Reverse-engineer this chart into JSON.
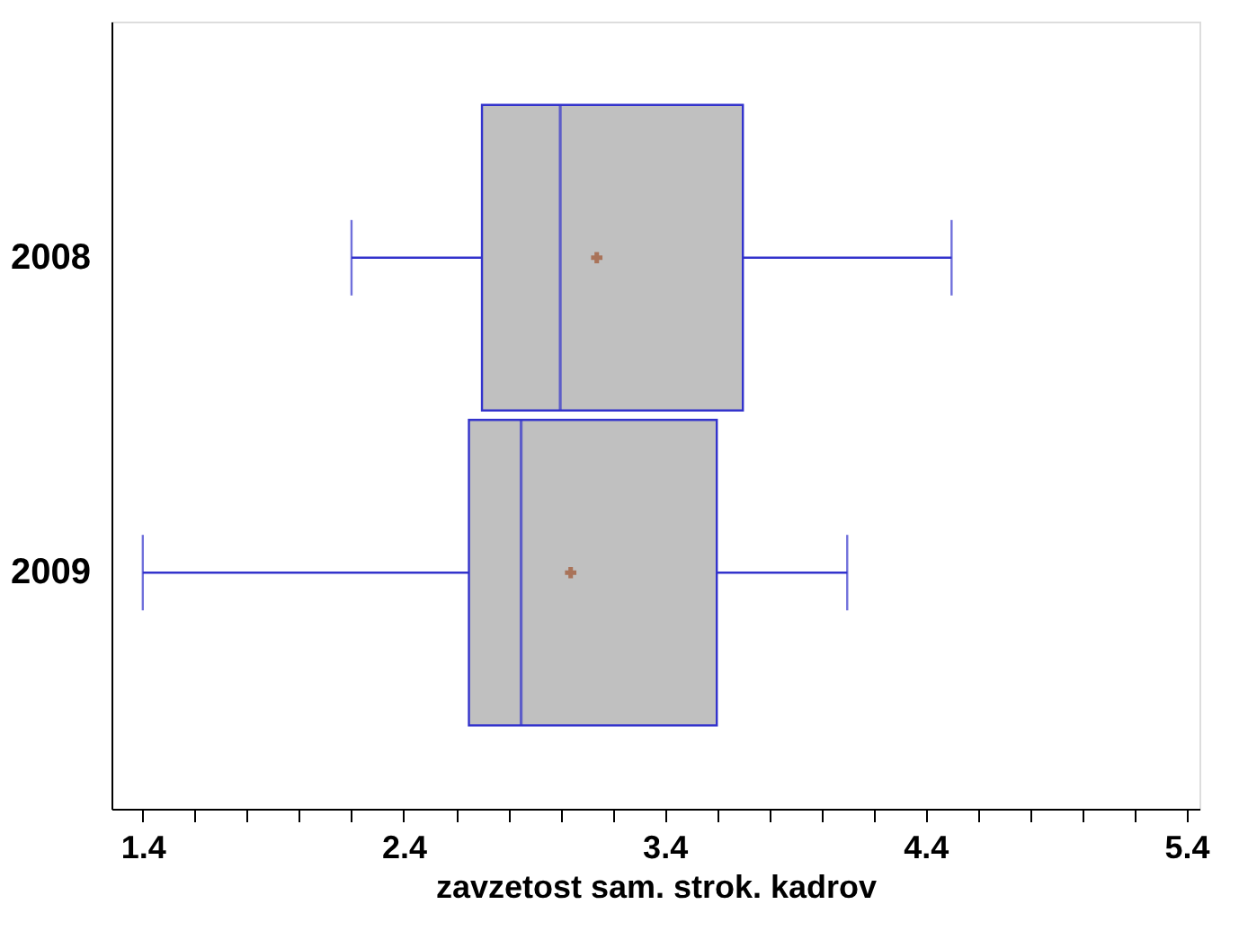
{
  "chart_data": {
    "type": "box",
    "xlabel": "zavzetost sam. strok. kadrov",
    "orientation": "horizontal",
    "categories": [
      "2008",
      "2009"
    ],
    "color": "#c0c0c0",
    "boxes": [
      {
        "low": 2.2,
        "q1": 2.7,
        "median": 3.0,
        "q3": 3.7,
        "high": 4.5,
        "mean": 3.14
      },
      {
        "low": 1.4,
        "q1": 2.65,
        "median": 2.85,
        "q3": 3.6,
        "high": 4.1,
        "mean": 3.04
      }
    ],
    "xlim": [
      1.28,
      5.45
    ],
    "xticks": [
      1.4,
      {
        "value": 1.6,
        "label": null
      },
      {
        "value": 1.8,
        "label": null
      },
      {
        "value": 2.0,
        "label": null
      },
      {
        "value": 2.2,
        "label": null
      },
      2.4,
      {
        "value": 2.6,
        "label": null
      },
      {
        "value": 2.8,
        "label": null
      },
      {
        "value": 3.0,
        "label": null
      },
      {
        "value": 3.2,
        "label": null
      },
      3.4,
      {
        "value": 3.6,
        "label": null
      },
      {
        "value": 3.8,
        "label": null
      },
      {
        "value": 4.0,
        "label": null
      },
      {
        "value": 4.2,
        "label": null
      },
      4.4,
      {
        "value": 4.6,
        "label": null
      },
      {
        "value": 4.8,
        "label": null
      },
      {
        "value": 5.0,
        "label": null
      },
      {
        "value": 5.2,
        "label": null
      },
      5.4
    ],
    "marker": "cross"
  }
}
